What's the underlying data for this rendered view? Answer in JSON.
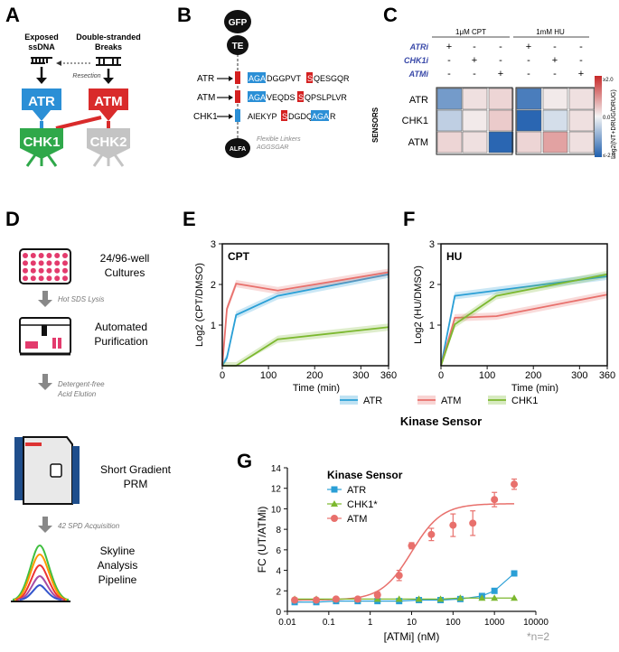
{
  "panel_labels": {
    "a": "A",
    "b": "B",
    "c": "C",
    "d": "D",
    "e": "E",
    "f": "F",
    "g": "G"
  },
  "panel_a": {
    "left_title_1": "Exposed",
    "left_title_2": "ssDNA",
    "right_title_1": "Double-stranded",
    "right_title_2": "Breaks",
    "resection": "Resection",
    "atr": "ATR",
    "atm": "ATM",
    "chk1": "CHK1",
    "chk2": "CHK2",
    "colors": {
      "atr": "#2b8fd6",
      "atm": "#d92b2b",
      "chk1": "#2fa84a",
      "chk2": "#c4c4c4"
    }
  },
  "panel_b": {
    "gfp": "GFP",
    "te": "TE",
    "alfa": "ALFA",
    "linker_1": "Flexible Linkers",
    "linker_2": "AGGSGAR",
    "rows": [
      {
        "label": "ATR",
        "pre": "",
        "hl": "AGA",
        "mid": "DGGPVT",
        "phos": "S",
        "post": "QESGQR"
      },
      {
        "label": "ATM",
        "pre": "",
        "hl": "AGA",
        "mid": "VEQDS",
        "phos": "S",
        "post": "QPSLPLVR"
      },
      {
        "label": "CHK1",
        "pre": "AIEKYP",
        "hl": "",
        "mid": "",
        "phos": "S",
        "post": "DGDQ",
        "tail": "AGA",
        "end": "R"
      }
    ]
  },
  "panel_c": {
    "col_group_1": "1μM CPT",
    "col_group_2": "1mM HU",
    "treatments": [
      "ATRi",
      "CHK1i",
      "ATMi"
    ],
    "marks": [
      [
        "+",
        "-",
        "-",
        "+",
        "-",
        "-"
      ],
      [
        "-",
        "+",
        "-",
        "-",
        "+",
        "-"
      ],
      [
        "-",
        "-",
        "+",
        "-",
        "-",
        "+"
      ]
    ],
    "rows": [
      "ATR",
      "CHK1",
      "ATM"
    ],
    "sensors_label": "SENSORS",
    "scale_top": "≥2.0",
    "scale_mid": "0.0",
    "scale_bottom": "≤-2.0",
    "scale_label": "Log2(NT+DRUG/DRUG)",
    "values": [
      [
        -1.2,
        0.2,
        0.3,
        -1.6,
        0.1,
        0.2
      ],
      [
        -0.5,
        0.1,
        0.4,
        -1.9,
        -0.3,
        0.2
      ],
      [
        0.3,
        0.2,
        -1.9,
        0.3,
        0.8,
        0.2
      ]
    ]
  },
  "panel_d": {
    "steps": [
      "24/96-well",
      "Cultures",
      "Automated",
      "Purification",
      "Short Gradient",
      "PRM",
      "Skyline",
      "Analysis",
      "Pipeline"
    ],
    "arrows": [
      "Hot SDS Lysis",
      "Detergent-free",
      "Acid Elution",
      "42 SPD Acquisition"
    ]
  },
  "legend_ef": {
    "title": "Kinase Sensor",
    "items": [
      "ATR",
      "ATM",
      "CHK1"
    ],
    "colors": {
      "ATR": "#2a9fd6",
      "ATM": "#e8706c",
      "CHK1": "#7cb82f"
    }
  },
  "chart_data": [
    {
      "type": "line",
      "title": "CPT",
      "xlabel": "Time (min)",
      "ylabel": "Log2 (CPT/DMSO)",
      "xlim": [
        0,
        360
      ],
      "ylim": [
        0,
        3
      ],
      "xticks": [
        0,
        100,
        200,
        300,
        360
      ],
      "yticks": [
        1,
        2,
        3
      ],
      "series": [
        {
          "name": "ATR",
          "x": [
            0,
            10,
            30,
            120,
            360
          ],
          "y": [
            0,
            0.2,
            1.25,
            1.72,
            2.25
          ]
        },
        {
          "name": "ATM",
          "x": [
            0,
            10,
            30,
            120,
            360
          ],
          "y": [
            0,
            1.4,
            2.02,
            1.85,
            2.3
          ]
        },
        {
          "name": "CHK1",
          "x": [
            0,
            30,
            120,
            360
          ],
          "y": [
            0,
            0,
            0.65,
            0.95
          ]
        }
      ]
    },
    {
      "type": "line",
      "title": "HU",
      "xlabel": "Time (min)",
      "ylabel": "Log2 (HU/DMSO)",
      "xlim": [
        0,
        360
      ],
      "ylim": [
        0,
        3
      ],
      "xticks": [
        0,
        100,
        200,
        300,
        360
      ],
      "yticks": [
        1,
        2,
        3
      ],
      "series": [
        {
          "name": "ATR",
          "x": [
            0,
            30,
            360
          ],
          "y": [
            0,
            1.72,
            2.2
          ]
        },
        {
          "name": "ATM",
          "x": [
            0,
            30,
            120,
            360
          ],
          "y": [
            0,
            1.18,
            1.22,
            1.75
          ]
        },
        {
          "name": "CHK1",
          "x": [
            0,
            30,
            120,
            360
          ],
          "y": [
            0,
            1.02,
            1.72,
            2.25
          ]
        }
      ]
    },
    {
      "type": "scatter",
      "title": "",
      "xlabel": "[ATMi] (nM)",
      "ylabel": "FC (UT/ATMi)",
      "xscale": "log",
      "xlim": [
        0.01,
        10000
      ],
      "ylim": [
        0,
        14
      ],
      "xticks": [
        "0.01",
        "0.1",
        "1",
        "10",
        "100",
        "1000",
        "10000"
      ],
      "yticks": [
        "0",
        "2",
        "4",
        "6",
        "8",
        "10",
        "12",
        "14"
      ],
      "legend_title": "Kinase Sensor",
      "note": "*n=2",
      "series": [
        {
          "name": "ATR",
          "marker": "square",
          "x": [
            0.015,
            0.05,
            0.15,
            0.5,
            1.5,
            5,
            15,
            50,
            150,
            500,
            1000,
            3000
          ],
          "y": [
            0.9,
            0.9,
            1.0,
            1.0,
            1.0,
            1.0,
            1.1,
            1.1,
            1.2,
            1.5,
            2.0,
            3.7
          ],
          "err": [
            0,
            0,
            0,
            0,
            0,
            0,
            0,
            0,
            0,
            0,
            0,
            0
          ]
        },
        {
          "name": "CHK1*",
          "marker": "triangle",
          "x": [
            0.015,
            0.05,
            0.15,
            0.5,
            1.5,
            5,
            15,
            50,
            150,
            500,
            1000,
            3000
          ],
          "y": [
            1.2,
            1.2,
            1.2,
            1.2,
            1.2,
            1.2,
            1.2,
            1.2,
            1.3,
            1.3,
            1.3,
            1.3
          ],
          "err": [
            0,
            0,
            0,
            0,
            0,
            0,
            0,
            0,
            0,
            0,
            0,
            0
          ]
        },
        {
          "name": "ATM",
          "marker": "circle",
          "x": [
            0.015,
            0.05,
            0.15,
            0.5,
            1.5,
            5,
            10,
            30,
            100,
            300,
            1000,
            3000
          ],
          "y": [
            1.1,
            1.1,
            1.2,
            1.2,
            1.6,
            3.5,
            6.4,
            7.5,
            8.4,
            8.6,
            10.9,
            12.4
          ],
          "err": [
            0,
            0,
            0,
            0,
            0.3,
            0.5,
            0.3,
            0.6,
            1.1,
            1.2,
            0.7,
            0.5
          ]
        }
      ],
      "fit": {
        "name": "ATM",
        "bottom": 1.1,
        "top": 10.5,
        "ec50": 10,
        "hill": 1.2
      }
    }
  ]
}
